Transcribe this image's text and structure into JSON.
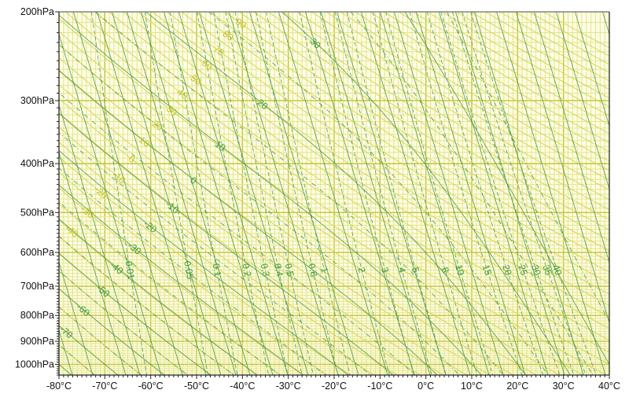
{
  "chart_data": {
    "type": "line",
    "diagram": "emagram",
    "y_scale": "log",
    "ylim_hpa": [
      1050,
      200
    ],
    "xlim_c": [
      -80,
      40
    ],
    "grid": true,
    "y_ticks": [
      "200hPa",
      "300hPa",
      "400hPa",
      "500hPa",
      "600hPa",
      "700hPa",
      "800hPa",
      "900hPa",
      "1000hPa"
    ],
    "y_tick_values": [
      200,
      300,
      400,
      500,
      600,
      700,
      800,
      900,
      1000
    ],
    "x_ticks": [
      "-80°C",
      "-70°C",
      "-60°C",
      "-50°C",
      "-40°C",
      "-30°C",
      "-20°C",
      "-10°C",
      "0°C",
      "10°C",
      "20°C",
      "30°C",
      "40°C"
    ],
    "x_tick_values": [
      -80,
      -70,
      -60,
      -50,
      -40,
      -30,
      -20,
      -10,
      0,
      10,
      20,
      30,
      40
    ],
    "dry_adiabat_labels": [
      "-40",
      "-30",
      "-20",
      "-10",
      "0",
      "10",
      "20",
      "30",
      "40",
      "50",
      "60",
      "70",
      "80",
      "90"
    ],
    "moist_adiabat_labels": [
      "-70",
      "-60",
      "-50",
      "-40",
      "-30",
      "-20",
      "-10",
      "0",
      "10",
      "20",
      "30"
    ],
    "mixing_ratio_labels": [
      "0.01",
      "0.05",
      "0.1",
      "0.2",
      "0.3",
      "0.4",
      "0.5",
      "0.8",
      "1",
      "2",
      "3",
      "4",
      "5",
      "8",
      "10",
      "15",
      "20",
      "25",
      "30",
      "35",
      "40"
    ],
    "colors": {
      "background": "#fdfde6",
      "grid_minor": "#e4e48c",
      "grid_major": "#c4c436",
      "dry_adiabat": "#d2d24e",
      "moist_adiabat": "#4f9a4a",
      "mixing_ratio": "#4f9a6a",
      "label_yellow": "#c2c21e",
      "label_green": "#3e9a3e"
    }
  }
}
